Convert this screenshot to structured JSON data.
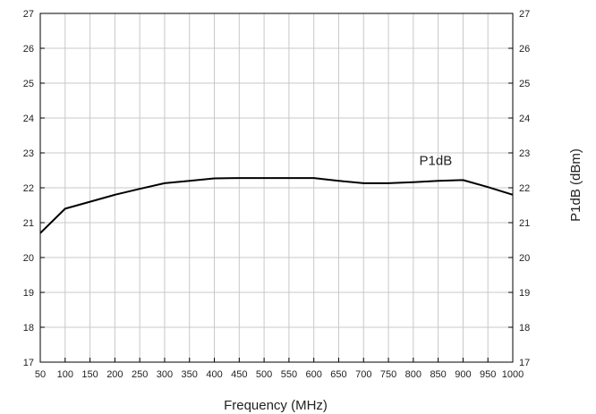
{
  "chart_data": {
    "type": "line",
    "title": "",
    "xlabel": "Frequency (MHz)",
    "ylabel_right": "P1dB (dBm)",
    "xlim": [
      50,
      1000
    ],
    "ylim": [
      17,
      27
    ],
    "x_ticks": [
      50,
      100,
      150,
      200,
      250,
      300,
      350,
      400,
      450,
      500,
      550,
      600,
      650,
      700,
      750,
      800,
      850,
      900,
      950,
      1000
    ],
    "x_tick_labels": [
      "50",
      "100",
      "150",
      "200",
      "250",
      "300",
      "350",
      "400",
      "450",
      "500",
      "550",
      "600",
      "650",
      "700",
      "750",
      "800",
      "850",
      "900",
      "950",
      "1000"
    ],
    "y_ticks": [
      17,
      18,
      19,
      20,
      21,
      22,
      23,
      24,
      25,
      26,
      27
    ],
    "y_tick_labels": [
      "17",
      "18",
      "19",
      "20",
      "21",
      "22",
      "23",
      "24",
      "25",
      "26",
      "27"
    ],
    "grid": true,
    "series": [
      {
        "name": "P1dB",
        "color": "#000000",
        "x": [
          50,
          100,
          150,
          200,
          250,
          300,
          350,
          400,
          450,
          500,
          550,
          600,
          650,
          700,
          750,
          800,
          850,
          900,
          950,
          1000
        ],
        "y": [
          20.7,
          21.4,
          21.6,
          21.8,
          21.97,
          22.13,
          22.2,
          22.27,
          22.28,
          22.28,
          22.28,
          22.28,
          22.2,
          22.13,
          22.13,
          22.16,
          22.2,
          22.22,
          22.02,
          21.8
        ]
      }
    ],
    "annotations": [
      {
        "text": "P1dB",
        "x": 845,
        "y": 22.65
      }
    ]
  }
}
